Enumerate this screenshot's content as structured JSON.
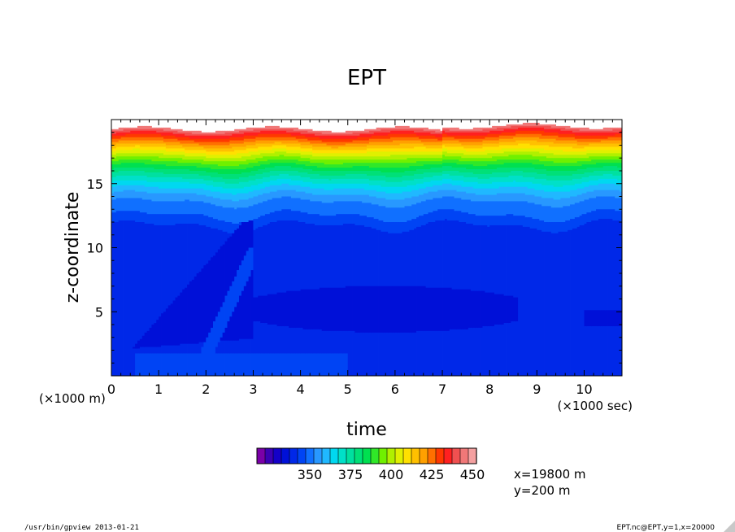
{
  "chart_data": {
    "type": "heatmap",
    "title": "EPT",
    "xlabel": "time",
    "ylabel": "z-coordinate",
    "x_unit_note": "(×1000 sec)",
    "y_unit_note": "(×1000 m)",
    "xlim": [
      0,
      10.8
    ],
    "ylim": [
      0,
      20
    ],
    "x_ticks": [
      0,
      1,
      2,
      3,
      4,
      5,
      6,
      7,
      8,
      9,
      10
    ],
    "y_ticks": [
      5,
      10,
      15
    ],
    "colorbar": {
      "levels": [
        320,
        325,
        330,
        335,
        340,
        345,
        350,
        355,
        360,
        365,
        370,
        375,
        380,
        385,
        390,
        395,
        400,
        405,
        410,
        415,
        420,
        425,
        430,
        435,
        440,
        445,
        450
      ],
      "tick_labels": [
        350,
        375,
        400,
        425,
        450
      ],
      "colors": [
        "#7a00a8",
        "#3c00b4",
        "#1400c8",
        "#0010d8",
        "#0028e8",
        "#0044f4",
        "#1070ff",
        "#2898ff",
        "#20b8ff",
        "#00d8f0",
        "#00e0c8",
        "#00e0a0",
        "#00e078",
        "#00e050",
        "#30e828",
        "#70f000",
        "#b0f000",
        "#e0f000",
        "#ffe000",
        "#ffc000",
        "#ffa000",
        "#ff7000",
        "#ff3800",
        "#ff2020",
        "#f05050",
        "#f07878",
        "#f4a0a0"
      ]
    }
  },
  "annotation": {
    "lines": [
      "x=19800 m",
      "y=200 m"
    ]
  },
  "footer": {
    "left": "/usr/bin/gpview  2013-01-21",
    "right": "EPT.nc@EPT,y=1,x=20000"
  }
}
